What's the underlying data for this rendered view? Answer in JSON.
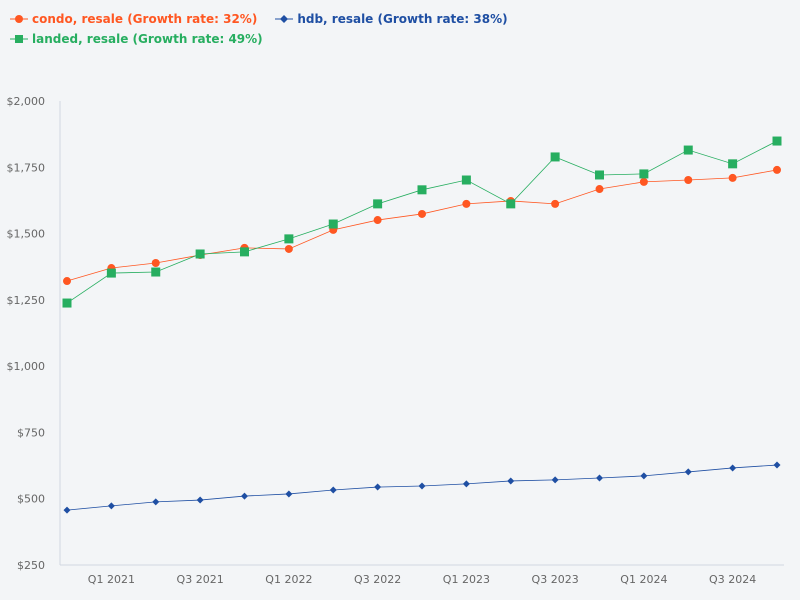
{
  "chart_data": {
    "type": "line",
    "title": "",
    "xlabel": "",
    "ylabel": "",
    "x": [
      "Q4 2020",
      "Q1 2021",
      "Q2 2021",
      "Q3 2021",
      "Q4 2021",
      "Q1 2022",
      "Q2 2022",
      "Q3 2022",
      "Q4 2022",
      "Q1 2023",
      "Q2 2023",
      "Q3 2023",
      "Q4 2023",
      "Q1 2024",
      "Q2 2024",
      "Q3 2024",
      "Q4 2024"
    ],
    "x_tick_labels": [
      "Q1 2021",
      "Q3 2021",
      "Q1 2022",
      "Q3 2022",
      "Q1 2023",
      "Q3 2023",
      "Q1 2024",
      "Q3 2024"
    ],
    "ylim": [
      250,
      2000
    ],
    "y_ticks": [
      250,
      500,
      750,
      1000,
      1250,
      1500,
      1750,
      2000
    ],
    "y_tick_labels": [
      "$250",
      "$500",
      "$750",
      "$1,000",
      "$1,250",
      "$1,500",
      "$1,750",
      "$2,000"
    ],
    "grid": false,
    "legend_placement": "top-left",
    "series": [
      {
        "name": "condo, resale (Growth rate: 32%)",
        "color": "#ff5722",
        "marker": "circle",
        "values": [
          1321,
          1370,
          1389,
          1419,
          1446,
          1442,
          1514,
          1551,
          1574,
          1612,
          1623,
          1612,
          1668,
          1695,
          1702,
          1710,
          1740
        ]
      },
      {
        "name": "hdb, resale (Growth rate: 38%)",
        "color": "#1f4fa3",
        "marker": "diamond",
        "values": [
          457,
          473,
          488,
          495,
          510,
          518,
          533,
          544,
          548,
          556,
          567,
          571,
          578,
          586,
          601,
          616,
          627
        ]
      },
      {
        "name": "landed, resale (Growth rate: 49%)",
        "color": "#27ae60",
        "marker": "square",
        "values": [
          1238,
          1351,
          1355,
          1423,
          1431,
          1480,
          1536,
          1612,
          1665,
          1702,
          1612,
          1789,
          1721,
          1725,
          1815,
          1763,
          1849
        ]
      }
    ]
  }
}
